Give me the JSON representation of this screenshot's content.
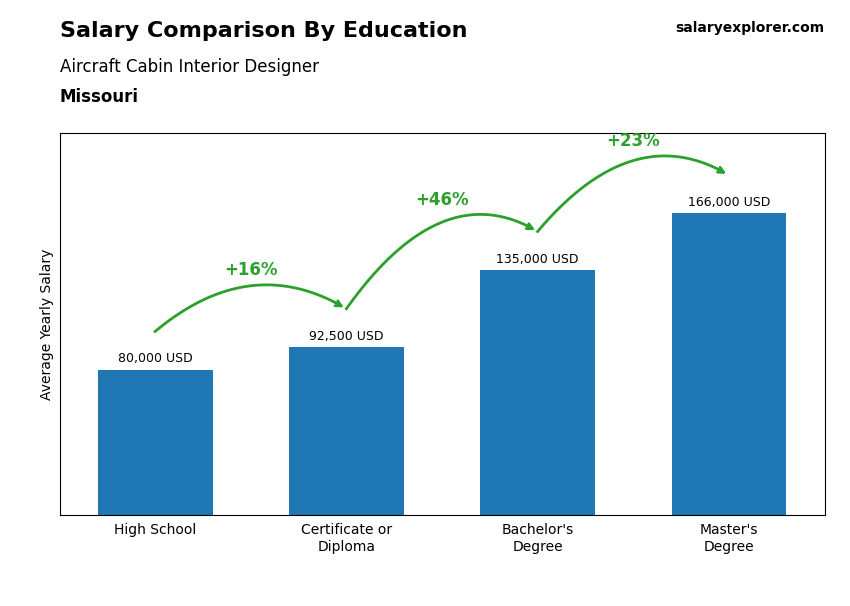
{
  "chart_data": {
    "type": "bar",
    "title": "Salary Comparison By Education",
    "subtitle": "Aircraft Cabin Interior Designer",
    "annotations": [
      "Missouri",
      "salaryexplorer.com"
    ],
    "ylabel": "Average Yearly Salary",
    "categories": [
      "High School",
      "Certificate or\nDiploma",
      "Bachelor's\nDegree",
      "Master's\nDegree"
    ],
    "values": [
      80000,
      92500,
      135000,
      166000
    ],
    "value_labels": [
      "80,000 USD",
      "92,500 USD",
      "135,000 USD",
      "166,000 USD"
    ],
    "change_labels": [
      "+16%",
      "+46%",
      "+23%"
    ],
    "data_labels": true,
    "tick_labels": "x",
    "ylim": [
      0,
      210000
    ],
    "grid": false
  }
}
